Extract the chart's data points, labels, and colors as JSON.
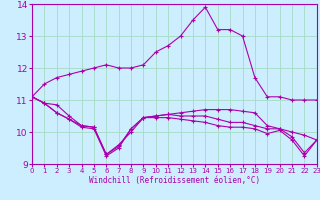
{
  "title": "",
  "xlabel": "Windchill (Refroidissement éolien,°C)",
  "background_color": "#cceeff",
  "grid_color": "#aaddcc",
  "line_color": "#aa00aa",
  "x": [
    0,
    1,
    2,
    3,
    4,
    5,
    6,
    7,
    8,
    9,
    10,
    11,
    12,
    13,
    14,
    15,
    16,
    17,
    18,
    19,
    20,
    21,
    22,
    23
  ],
  "series": [
    [
      11.1,
      11.5,
      11.7,
      11.8,
      11.9,
      12.0,
      12.1,
      12.0,
      12.0,
      12.1,
      12.5,
      12.7,
      13.0,
      13.5,
      13.9,
      13.2,
      13.2,
      13.0,
      11.7,
      11.1,
      11.1,
      11.0,
      11.0,
      11.0
    ],
    [
      11.1,
      10.9,
      10.85,
      10.5,
      10.2,
      10.15,
      9.3,
      9.6,
      10.0,
      10.45,
      10.5,
      10.55,
      10.6,
      10.65,
      10.7,
      10.7,
      10.7,
      10.65,
      10.6,
      10.2,
      10.1,
      10.0,
      9.9,
      9.75
    ],
    [
      11.1,
      10.9,
      10.6,
      10.4,
      10.2,
      10.15,
      9.3,
      9.55,
      10.1,
      10.45,
      10.5,
      10.55,
      10.5,
      10.5,
      10.5,
      10.4,
      10.3,
      10.3,
      10.2,
      10.1,
      10.1,
      9.85,
      9.35,
      9.75
    ],
    [
      11.1,
      10.9,
      10.6,
      10.4,
      10.15,
      10.1,
      9.25,
      9.5,
      10.1,
      10.45,
      10.45,
      10.45,
      10.4,
      10.35,
      10.3,
      10.2,
      10.15,
      10.15,
      10.1,
      9.95,
      10.05,
      9.75,
      9.25,
      9.75
    ]
  ],
  "ylim": [
    9,
    14
  ],
  "xlim": [
    0,
    23
  ],
  "yticks": [
    9,
    10,
    11,
    12,
    13,
    14
  ],
  "xticks": [
    0,
    1,
    2,
    3,
    4,
    5,
    6,
    7,
    8,
    9,
    10,
    11,
    12,
    13,
    14,
    15,
    16,
    17,
    18,
    19,
    20,
    21,
    22,
    23
  ]
}
